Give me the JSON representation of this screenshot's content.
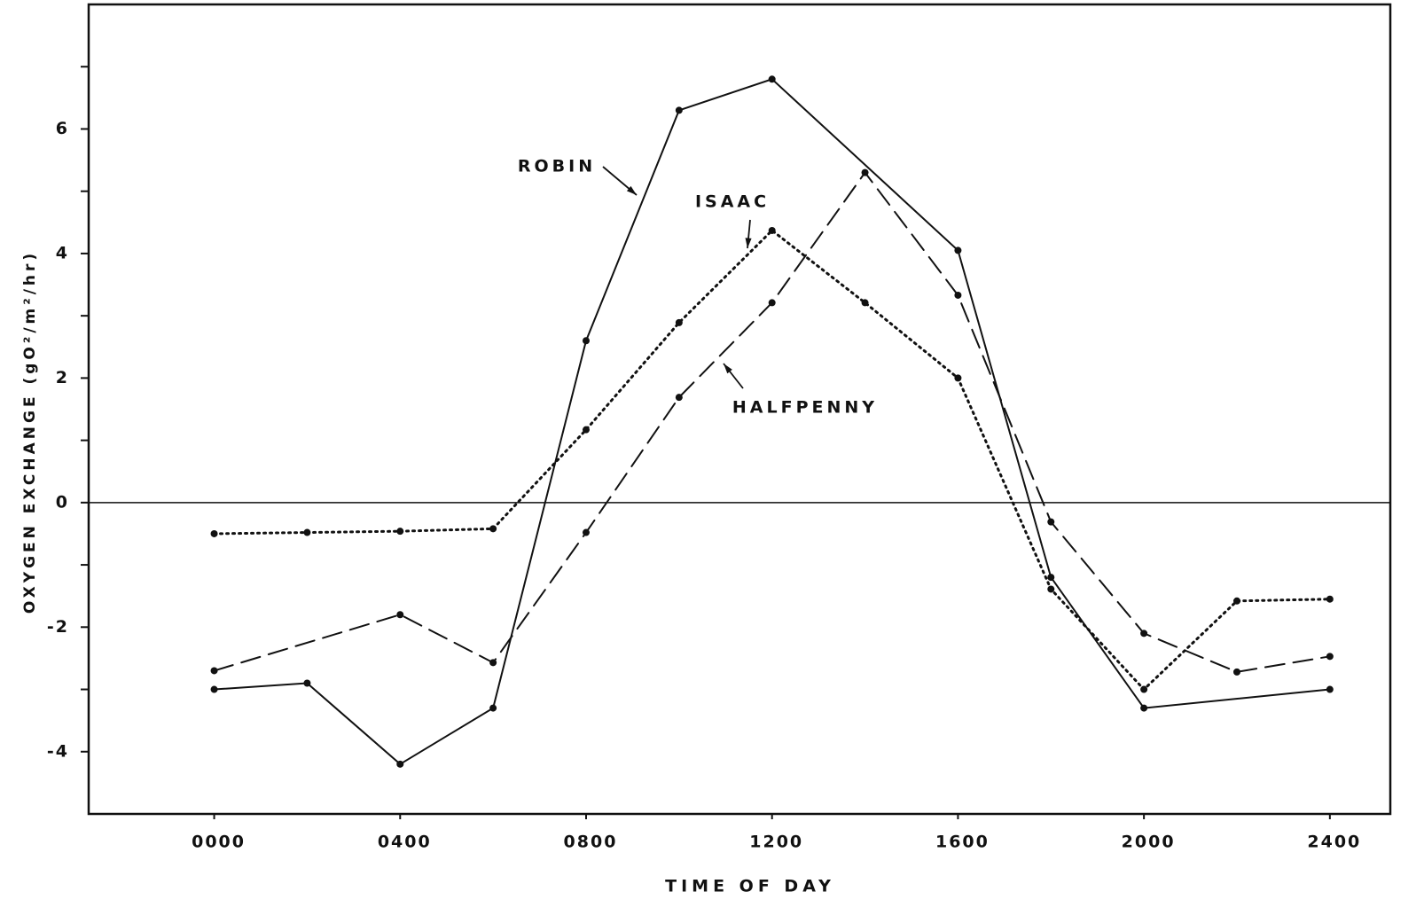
{
  "chart_data": {
    "type": "line",
    "xlabel": "TIME OF DAY",
    "ylabel": "OXYGEN EXCHANGE (gO²/m²/hr)",
    "xlim": [
      -2.7,
      25.3
    ],
    "ylim": [
      -5,
      8
    ],
    "xticks": [
      {
        "value": 0,
        "label": "0000"
      },
      {
        "value": 4,
        "label": "0400"
      },
      {
        "value": 8,
        "label": "0800"
      },
      {
        "value": 12,
        "label": "1200"
      },
      {
        "value": 16,
        "label": "1600"
      },
      {
        "value": 20,
        "label": "2000"
      },
      {
        "value": 24,
        "label": "2400"
      }
    ],
    "yticks": [
      -4,
      -2,
      0,
      2,
      4,
      6
    ],
    "yticks_minor": [
      -3,
      -1,
      1,
      3,
      5,
      7
    ],
    "zero_line": true,
    "series": [
      {
        "name": "ROBIN",
        "color": "#111111",
        "style": "solid",
        "x": [
          0,
          2,
          4,
          6,
          8,
          10,
          12,
          16,
          18,
          20,
          24
        ],
        "values": [
          -3.0,
          -2.9,
          -4.2,
          -3.3,
          2.6,
          6.3,
          6.8,
          4.05,
          -1.2,
          -3.3,
          -3.0
        ]
      },
      {
        "name": "ISAAC",
        "color": "#111111",
        "style": "dotted",
        "x": [
          0,
          2,
          4,
          6,
          8,
          10,
          12,
          14,
          16,
          18,
          20,
          22,
          24
        ],
        "values": [
          -0.5,
          -0.48,
          -0.46,
          -0.42,
          1.17,
          2.89,
          4.37,
          3.21,
          2.0,
          -1.39,
          -3.0,
          -1.58,
          -1.55
        ]
      },
      {
        "name": "HALFPENNY",
        "color": "#111111",
        "style": "dashed",
        "x": [
          0,
          4,
          6,
          8,
          10,
          12,
          14,
          16,
          18,
          20,
          22,
          24
        ],
        "values": [
          -2.7,
          -1.8,
          -2.57,
          -0.48,
          1.69,
          3.21,
          5.3,
          3.33,
          -0.31,
          -2.1,
          -2.72,
          -2.47
        ]
      }
    ]
  }
}
